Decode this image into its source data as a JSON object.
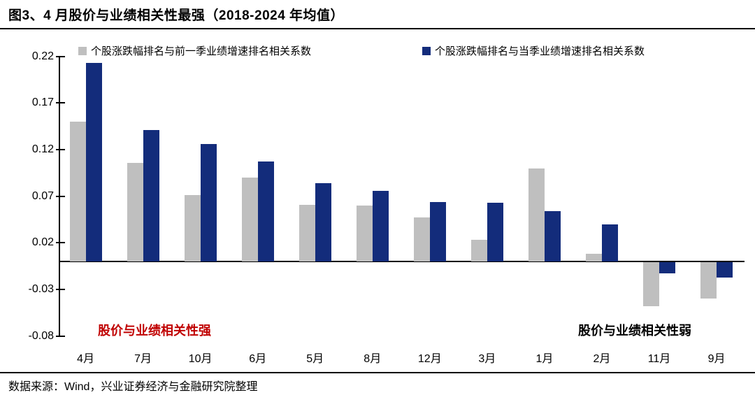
{
  "page": {
    "title": "图3、4 月股价与业绩相关性最强（2018-2024 年均值）",
    "source": "数据来源：Wind，兴业证券经济与金融研究院整理"
  },
  "colors": {
    "gray": "#BFBFBF",
    "blue": "#132C7B",
    "red": "#C00000",
    "black": "#000000",
    "axis": "#000000"
  },
  "chart_data": {
    "type": "bar",
    "title": "图3、4 月股价与业绩相关性最强（2018-2024 年均值）",
    "categories": [
      "4月",
      "7月",
      "10月",
      "6月",
      "5月",
      "8月",
      "12月",
      "3月",
      "1月",
      "2月",
      "11月",
      "9月"
    ],
    "series": [
      {
        "name": "个股涨跌幅排名与前一季业绩增速排名相关系数",
        "color_key": "gray",
        "values": [
          0.15,
          0.106,
          0.071,
          0.09,
          0.061,
          0.06,
          0.047,
          0.023,
          0.1,
          0.008,
          -0.047,
          -0.039
        ]
      },
      {
        "name": "个股涨跌幅排名与当季业绩增速排名相关系数",
        "color_key": "blue",
        "values": [
          0.213,
          0.141,
          0.126,
          0.107,
          0.084,
          0.076,
          0.064,
          0.063,
          0.054,
          0.04,
          -0.012,
          -0.016
        ]
      }
    ],
    "yticks": [
      0.22,
      0.17,
      0.12,
      0.07,
      0.02,
      -0.03,
      -0.08
    ],
    "ylim": [
      -0.08,
      0.22
    ],
    "grid": false,
    "legend_position": "top",
    "annotations": [
      {
        "text": "股价与业绩相关性强",
        "color_key": "red",
        "position": "bottom-left"
      },
      {
        "text": "股价与业绩相关性弱",
        "color_key": "black",
        "position": "bottom-right"
      }
    ]
  }
}
